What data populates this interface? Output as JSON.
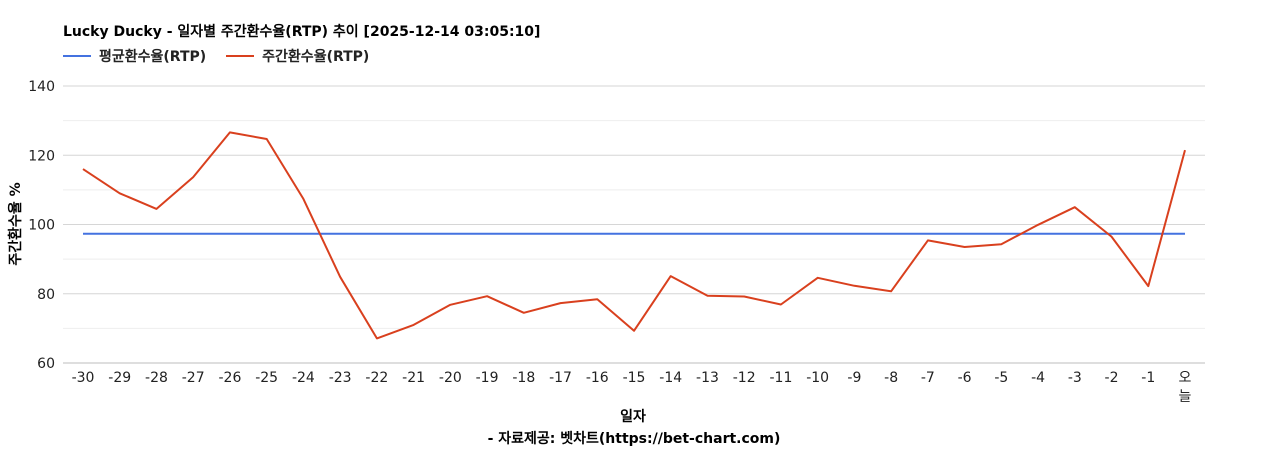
{
  "chart_data": {
    "type": "line",
    "title": "Lucky Ducky - 일자별 주간환수율(RTP) 추이 [2025-12-14 03:05:10]",
    "xlabel": "일자",
    "ylabel": "주간환수율 %",
    "source": "- 자료제공: 벳차트(https://bet-chart.com)",
    "categories": [
      "-30",
      "-29",
      "-28",
      "-27",
      "-26",
      "-25",
      "-24",
      "-23",
      "-22",
      "-21",
      "-20",
      "-19",
      "-18",
      "-17",
      "-16",
      "-15",
      "-14",
      "-13",
      "-12",
      "-11",
      "-10",
      "-9",
      "-8",
      "-7",
      "-6",
      "-5",
      "-4",
      "-3",
      "-2",
      "-1",
      "오늘"
    ],
    "ylim": [
      60,
      140
    ],
    "yticks": [
      60,
      80,
      100,
      120,
      140
    ],
    "grid": true,
    "legend_position": "top-left",
    "series": [
      {
        "name": "평균환수율(RTP)",
        "color": "#4472e0",
        "values": [
          97.3,
          97.3,
          97.3,
          97.3,
          97.3,
          97.3,
          97.3,
          97.3,
          97.3,
          97.3,
          97.3,
          97.3,
          97.3,
          97.3,
          97.3,
          97.3,
          97.3,
          97.3,
          97.3,
          97.3,
          97.3,
          97.3,
          97.3,
          97.3,
          97.3,
          97.3,
          97.3,
          97.3,
          97.3,
          97.3,
          97.3
        ]
      },
      {
        "name": "주간환수율(RTP)",
        "color": "#d9401e",
        "values": [
          116.0,
          109.0,
          104.5,
          113.7,
          126.6,
          124.7,
          107.4,
          84.9,
          67.1,
          71.0,
          76.8,
          79.3,
          74.5,
          77.3,
          78.4,
          69.3,
          85.1,
          79.4,
          79.2,
          76.9,
          84.6,
          82.3,
          80.7,
          95.4,
          93.5,
          94.3,
          99.9,
          105.0,
          96.5,
          82.2,
          121.5
        ]
      }
    ]
  }
}
